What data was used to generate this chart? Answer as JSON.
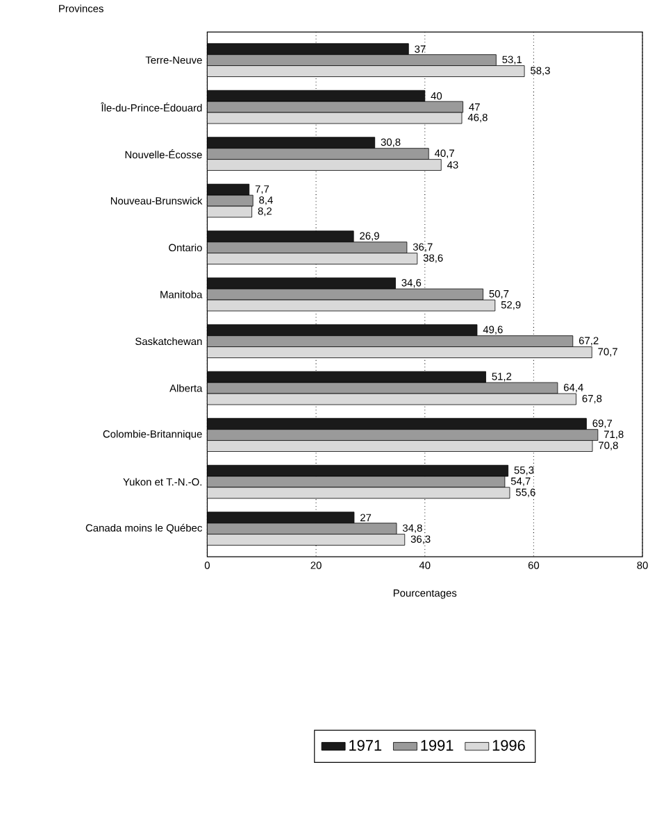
{
  "chart_data": {
    "type": "bar",
    "orientation": "horizontal",
    "xlabel": "Pourcentages",
    "ylabel": "Provinces",
    "categories": [
      "Terre-Neuve",
      "Île-du-Prince-Édouard",
      "Nouvelle-Écosse",
      "Nouveau-Brunswick",
      "Ontario",
      "Manitoba",
      "Saskatchewan",
      "Alberta",
      "Colombie-Britannique",
      "Yukon et T.-N.-O.",
      "Canada moins le Québec"
    ],
    "series": [
      {
        "name": "1971",
        "color": "#1a1a1a",
        "values": [
          37,
          40,
          30.8,
          7.7,
          26.9,
          34.6,
          49.6,
          51.2,
          69.7,
          55.3,
          27
        ],
        "value_labels": [
          "37",
          "40",
          "30,8",
          "7,7",
          "26,9",
          "34,6",
          "49,6",
          "51,2",
          "69,7",
          "55,3",
          "27"
        ]
      },
      {
        "name": "1991",
        "color": "#9a9a9a",
        "values": [
          53.1,
          47,
          40.7,
          8.4,
          36.7,
          50.7,
          67.2,
          64.4,
          71.8,
          54.7,
          34.8
        ],
        "value_labels": [
          "53,1",
          "47",
          "40,7",
          "8,4",
          "36,7",
          "50,7",
          "67,2",
          "64,4",
          "71,8",
          "54,7",
          "34,8"
        ]
      },
      {
        "name": "1996",
        "color": "#d9d9d9",
        "values": [
          58.3,
          46.8,
          43,
          8.2,
          38.6,
          52.9,
          70.7,
          67.8,
          70.8,
          55.6,
          36.3
        ],
        "value_labels": [
          "58,3",
          "46,8",
          "43",
          "8,2",
          "38,6",
          "52,9",
          "70,7",
          "67,8",
          "70,8",
          "55,6",
          "36,3"
        ]
      }
    ],
    "xlim": [
      0,
      80
    ],
    "xticks": [
      0,
      20,
      40,
      60,
      80
    ],
    "grid": "x",
    "legend": "bottom"
  }
}
